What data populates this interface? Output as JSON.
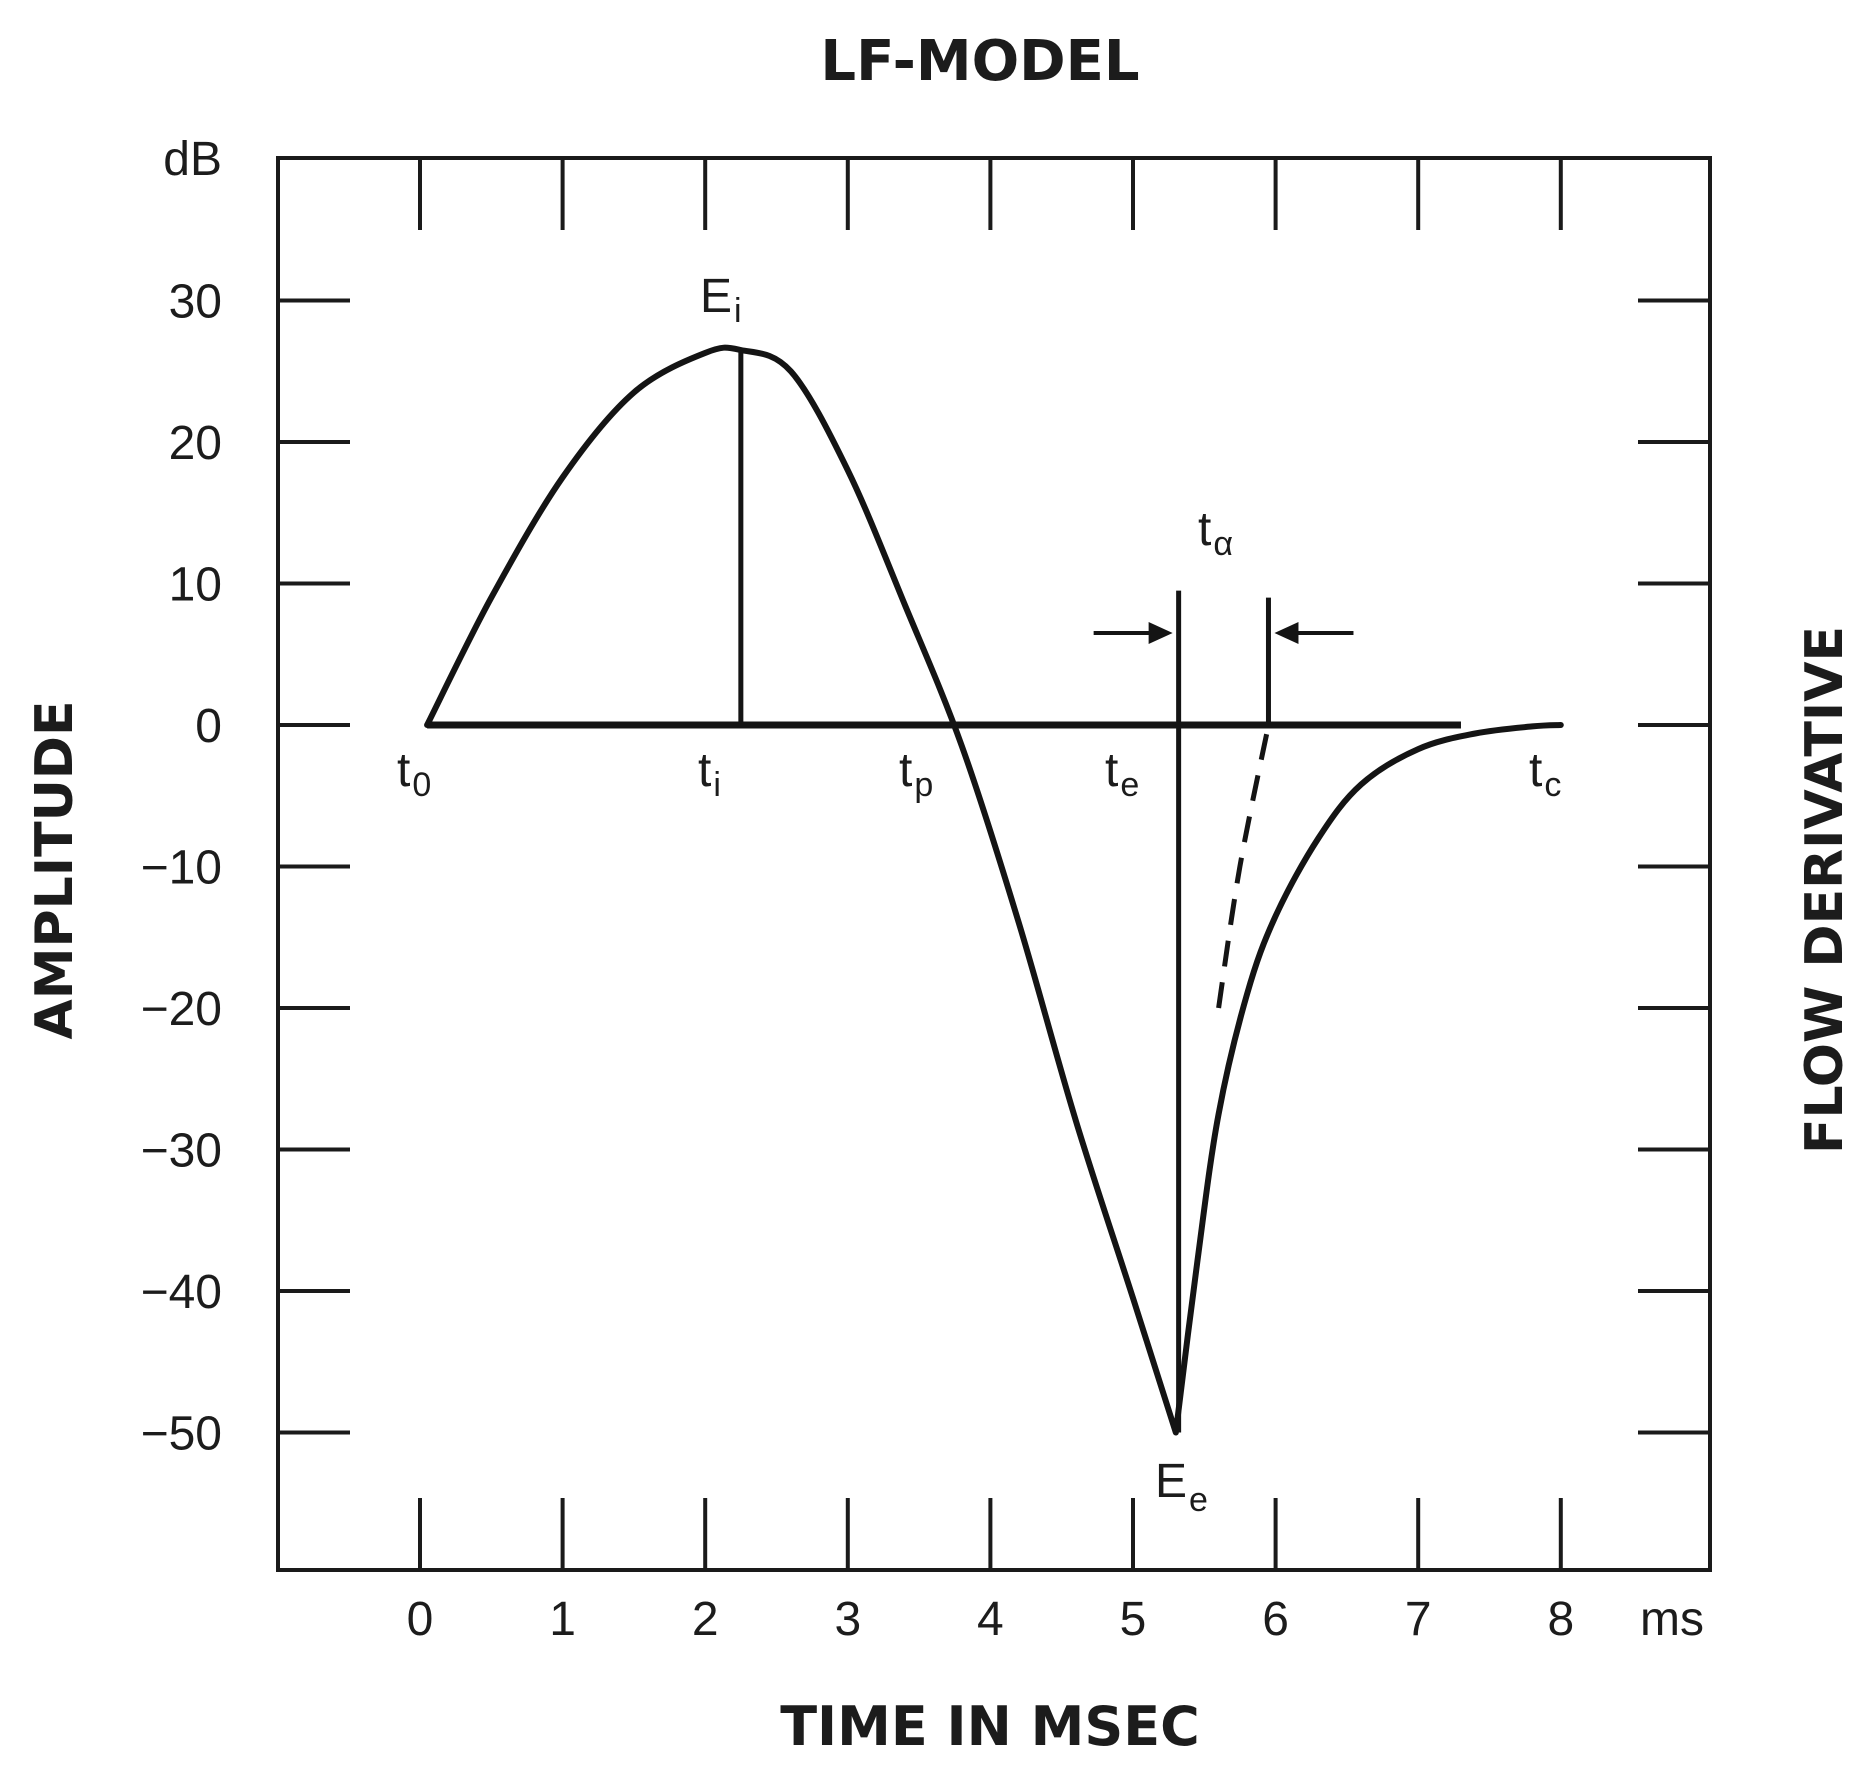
{
  "chart_data": {
    "type": "line",
    "title": "LF-MODEL",
    "xlabel": "TIME IN MSEC",
    "ylabel": "AMPLITUDE",
    "ylabel_right": "FLOW DERIVATIVE",
    "x_unit": "ms",
    "y_unit": "dB",
    "xlim": [
      -1,
      9
    ],
    "ylim": [
      -60,
      40
    ],
    "x_ticks": [
      0,
      1,
      2,
      3,
      4,
      5,
      6,
      7,
      8
    ],
    "x_tick_labels": [
      "0",
      "1",
      "2",
      "3",
      "4",
      "5",
      "6",
      "7",
      "8"
    ],
    "y_ticks": [
      30,
      20,
      10,
      0,
      -10,
      -20,
      -30,
      -40,
      -50
    ],
    "y_tick_labels": [
      "30",
      "20",
      "10",
      "0",
      "−10",
      "−20",
      "−30",
      "−40",
      "−50"
    ],
    "grid": false,
    "series": [
      {
        "style": "solid",
        "x": [
          0.05,
          0.5,
          1.0,
          1.5,
          2.0,
          2.25,
          2.6,
          3.0,
          3.4,
          3.8,
          4.2,
          4.6,
          5.0,
          5.3,
          5.45,
          5.6,
          5.8,
          6.0,
          6.3,
          6.6,
          7.0,
          7.4,
          7.8,
          8.0
        ],
        "y": [
          0,
          9,
          17.5,
          23.5,
          26.3,
          26.5,
          25,
          18,
          8.5,
          -1.5,
          -14,
          -28,
          -40.5,
          -50,
          -38,
          -27.5,
          -19,
          -13.5,
          -8,
          -4.2,
          -1.7,
          -0.6,
          -0.1,
          0
        ]
      },
      {
        "style": "dashed",
        "x": [
          5.6,
          5.75,
          5.95
        ],
        "y": [
          -20,
          -10,
          0
        ]
      }
    ],
    "baseline": {
      "x_start": 0.05,
      "x_end": 7.3,
      "y": 0
    },
    "markers": [
      {
        "x": 2.25,
        "y_from": 0,
        "y_to": 26.5
      },
      {
        "x": 5.32,
        "y_from": -50,
        "y_to": 9.5
      },
      {
        "x": 5.95,
        "y_from": 0,
        "y_to": 9
      }
    ],
    "annotations": {
      "E_i": {
        "main": "E",
        "sub": "i"
      },
      "E_e": {
        "main": "E",
        "sub": "e"
      },
      "t_0": {
        "main": "t",
        "sub": "0"
      },
      "t_i": {
        "main": "t",
        "sub": "i"
      },
      "t_p": {
        "main": "t",
        "sub": "p"
      },
      "t_e": {
        "main": "t",
        "sub": "e"
      },
      "t_c": {
        "main": "t",
        "sub": "c"
      },
      "t_alpha": {
        "main": "t",
        "sub": "α"
      }
    }
  }
}
